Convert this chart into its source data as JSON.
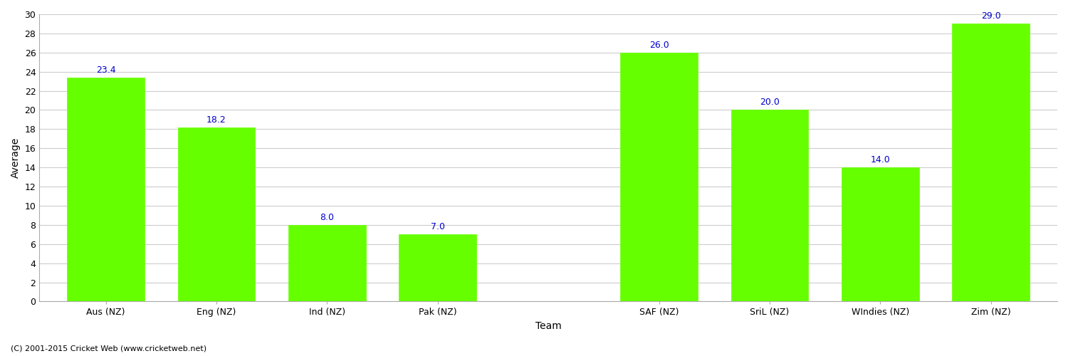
{
  "categories": [
    "Aus (NZ)",
    "Eng (NZ)",
    "Ind (NZ)",
    "Pak (NZ)",
    "",
    "SAF (NZ)",
    "SriL (NZ)",
    "WIndies (NZ)",
    "Zim (NZ)"
  ],
  "bar_categories": [
    "Aus (NZ)",
    "Eng (NZ)",
    "Ind (NZ)",
    "Pak (NZ)",
    "SAF (NZ)",
    "SriL (NZ)",
    "WIndies (NZ)",
    "Zim (NZ)"
  ],
  "bar_positions": [
    0,
    1,
    2,
    3,
    5,
    6,
    7,
    8
  ],
  "values": [
    23.4,
    18.2,
    8.0,
    7.0,
    26.0,
    20.0,
    14.0,
    29.0
  ],
  "bar_color": "#66ff00",
  "bar_edge_color": "#66ff00",
  "value_color": "#0000cc",
  "xlabel": "Team",
  "ylabel": "Average",
  "ylim": [
    0,
    30
  ],
  "yticks": [
    0,
    2,
    4,
    6,
    8,
    10,
    12,
    14,
    16,
    18,
    20,
    22,
    24,
    26,
    28,
    30
  ],
  "background_color": "#ffffff",
  "grid_color": "#cccccc",
  "footer_text": "(C) 2001-2015 Cricket Web (www.cricketweb.net)",
  "value_fontsize": 9,
  "axis_label_fontsize": 10,
  "tick_fontsize": 9,
  "footer_fontsize": 8
}
